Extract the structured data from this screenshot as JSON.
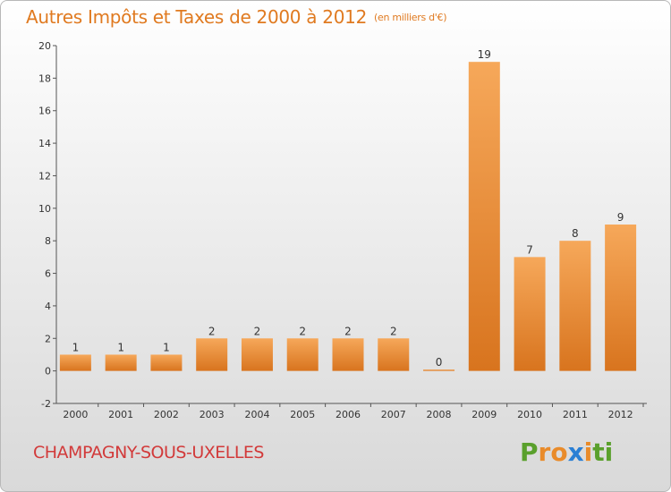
{
  "title": "Autres Impôts et Taxes de 2000 à 2012",
  "subtitle": "(en milliers d'€)",
  "commune": "CHAMPAGNY-SOUS-UXELLES",
  "brand": {
    "letters": [
      "P",
      "r",
      "o",
      "x",
      "i",
      "t",
      "i"
    ],
    "colors": [
      "#5aa02c",
      "#e98b2a",
      "#e98b2a",
      "#2a7fd4",
      "#e98b2a",
      "#5aa02c",
      "#5aa02c"
    ]
  },
  "colors": {
    "bar_light": "#f6a85a",
    "bar_dark": "#d8741e",
    "axis": "#555555",
    "grid_text": "#333333"
  },
  "chart_data": {
    "type": "bar",
    "categories": [
      "2000",
      "2001",
      "2002",
      "2003",
      "2004",
      "2005",
      "2006",
      "2007",
      "2008",
      "2009",
      "2010",
      "2011",
      "2012"
    ],
    "values": [
      1,
      1,
      1,
      2,
      2,
      2,
      2,
      2,
      0,
      19,
      7,
      8,
      9
    ],
    "value_labels": [
      "1",
      "1",
      "1",
      "2",
      "2",
      "2",
      "2",
      "2",
      "0",
      "19",
      "7",
      "8",
      "9"
    ],
    "yticks": [
      "-2",
      "0",
      "2",
      "4",
      "6",
      "8",
      "10",
      "12",
      "14",
      "16",
      "18",
      "20"
    ],
    "ylim": [
      -2,
      20
    ],
    "title": "Autres Impôts et Taxes de 2000 à 2012",
    "xlabel": "",
    "ylabel": ""
  }
}
